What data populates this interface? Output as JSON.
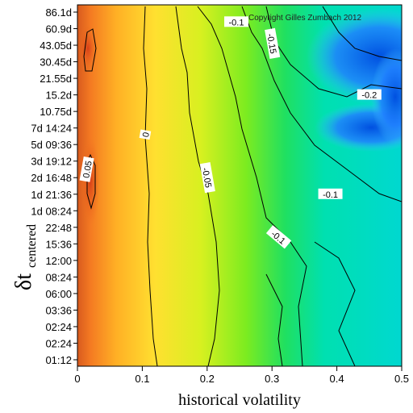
{
  "chart_data": {
    "type": "heatmap",
    "xlabel": "historical volatility",
    "ylabel_main": "δt",
    "ylabel_sub": "centered",
    "xlim": [
      0,
      0.5
    ],
    "x_ticks": [
      "0",
      "0.1",
      "0.2",
      "0.3",
      "0.4",
      "0.5"
    ],
    "y_ticks": [
      "86.1d",
      "60.9d",
      "43.05d",
      "30.45d",
      "21.55d",
      "15.2d",
      "10.75d",
      "7d 14:24",
      "5d 09:36",
      "3d 19:12",
      "2d 16:48",
      "1d 21:36",
      "1d 08:24",
      "22:48",
      "15:36",
      "12:00",
      "08:24",
      "06:00",
      "03:36",
      "02:24",
      "02:24",
      "01:12"
    ],
    "copyright": "Copyright Gilles Zumbach 2012",
    "contour_levels": [
      {
        "label": "0.05",
        "x": 0.015,
        "y_index": 9.5,
        "rotate": -80
      },
      {
        "label": "0",
        "x": 0.105,
        "y_index": 7.4,
        "rotate": -80
      },
      {
        "label": "-0.05",
        "x": 0.2,
        "y_index": 10.0,
        "rotate": 80
      },
      {
        "label": "-0.1",
        "x": 0.245,
        "y_index": 0.6,
        "rotate": 0
      },
      {
        "label": "-0.15",
        "x": 0.3,
        "y_index": 1.9,
        "rotate": 80
      },
      {
        "label": "-0.1",
        "x": 0.39,
        "y_index": 11.0,
        "rotate": 0
      },
      {
        "label": "-0.1",
        "x": 0.31,
        "y_index": 13.6,
        "rotate": 40
      },
      {
        "label": "-0.2",
        "x": 0.45,
        "y_index": 5.0,
        "rotate": 0
      }
    ],
    "grid": false,
    "colormap": [
      "#d85a1e",
      "#ffa020",
      "#ffe02a",
      "#c8f020",
      "#3cf020",
      "#00e6a0",
      "#3ab4ff",
      "#0050e0"
    ]
  }
}
